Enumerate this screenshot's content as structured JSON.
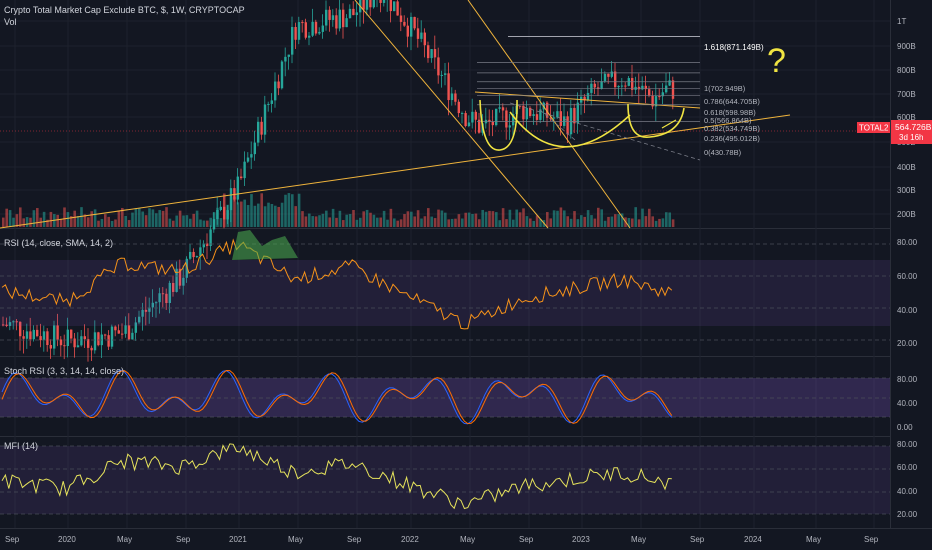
{
  "header": {
    "title": "Crypto Total Market Cap Exclude BTC, $, 1W, CRYPTOCAP",
    "vol": "Vol"
  },
  "price_panel": {
    "ticker": "TOTAL2",
    "last_price": "564.726B",
    "countdown": "3d 16h",
    "y_ticks": [
      "1T",
      "900B",
      "800B",
      "700B",
      "600B",
      "500B",
      "400B",
      "300B",
      "200B"
    ]
  },
  "fib_levels": [
    {
      "label": "1.618(871.149B)",
      "value": 871.149
    },
    {
      "label": "1(702.949B)",
      "value": 702.949
    },
    {
      "label": "0.786(644.705B)",
      "value": 644.705
    },
    {
      "label": "0.618(598.98B)",
      "value": 598.98
    },
    {
      "label": "0.5(566.864B)",
      "value": 566.864
    },
    {
      "label": "0.382(534.749B)",
      "value": 534.749
    },
    {
      "label": "0.236(495.012B)",
      "value": 495.012
    },
    {
      "label": "0(430.78B)",
      "value": 430.78
    }
  ],
  "annotation": {
    "question_mark": "?"
  },
  "indicators": [
    {
      "name": "RSI (14, close, SMA, 14, 2)",
      "ticks": [
        "80.00",
        "60.00",
        "40.00",
        "20.00"
      ]
    },
    {
      "name": "Stoch RSI (3, 3, 14, 14, close)",
      "ticks": [
        "80.00",
        "40.00",
        "0.00"
      ]
    },
    {
      "name": "MFI (14)",
      "ticks": [
        "80.00",
        "60.00",
        "40.00",
        "20.00"
      ]
    }
  ],
  "x_axis": {
    "labels": [
      "Sep",
      "2020",
      "May",
      "Sep",
      "2021",
      "May",
      "Sep",
      "2022",
      "May",
      "Sep",
      "2023",
      "May",
      "Sep",
      "2024",
      "May",
      "Sep"
    ]
  },
  "colors": {
    "background": "#131722",
    "up": "#26a69a",
    "down": "#ef5350",
    "trendline": "#f0b43c",
    "pattern": "#f0e442",
    "rsi_line": "#f7931a",
    "stoch_k": "#2962ff",
    "stoch_d": "#ff6d00",
    "mfi_line": "#e6e35c",
    "band": "#7e57c2",
    "price_tag": "#f23645"
  },
  "chart_data": {
    "type": "candlestick",
    "title": "Crypto Total Market Cap Exclude BTC, $, 1W, CRYPTOCAP",
    "y_scale": "log",
    "last_price_B": 564.726,
    "weekly_close_B_approx": {
      "x": [
        "2019-09",
        "2020-01",
        "2020-05",
        "2020-09",
        "2021-01",
        "2021-05",
        "2021-09",
        "2021-11",
        "2022-01",
        "2022-05",
        "2022-06",
        "2022-09",
        "2022-12",
        "2023-02",
        "2023-04",
        "2023-06",
        "2023-07"
      ],
      "values": [
        80,
        70,
        75,
        120,
        250,
        950,
        1050,
        1300,
        950,
        450,
        410,
        480,
        430,
        560,
        620,
        520,
        565
      ]
    },
    "rsi_approx": {
      "x": [
        "2019-09",
        "2020-01",
        "2020-05",
        "2020-09",
        "2021-01",
        "2021-05",
        "2021-09",
        "2022-01",
        "2022-05",
        "2022-09",
        "2023-01",
        "2023-04",
        "2023-07"
      ],
      "values": [
        50,
        44,
        68,
        63,
        80,
        58,
        66,
        47,
        30,
        46,
        53,
        58,
        50
      ]
    }
  }
}
